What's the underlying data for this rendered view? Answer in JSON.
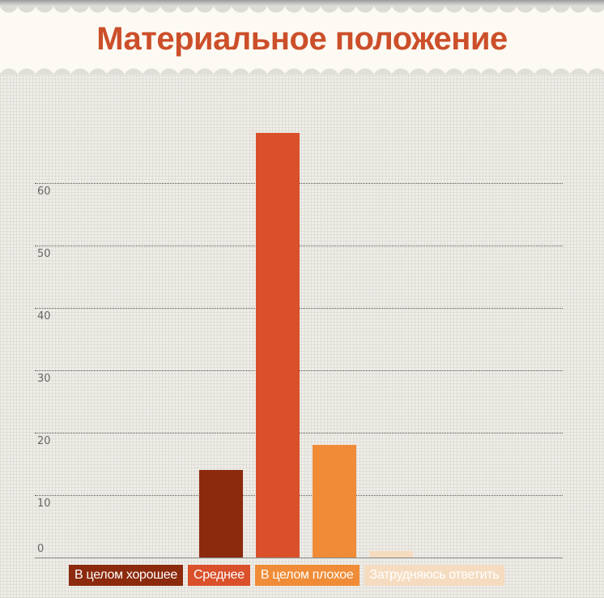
{
  "header": {
    "title": "Материальное положение",
    "title_color": "#cc4f2a"
  },
  "chart_data": {
    "type": "bar",
    "title": "Материальное положение",
    "xlabel": "",
    "ylabel": "",
    "categories": [
      "В целом хорошее",
      "Среднее",
      "В целом плохое",
      "Затрудняюсь ответить"
    ],
    "values": [
      14,
      68,
      18,
      1
    ],
    "colors": [
      "#8c2a0e",
      "#d9502a",
      "#f08c37",
      "#f5dcc0"
    ],
    "ylim": [
      0,
      70
    ],
    "yticks": [
      0,
      10,
      20,
      30,
      40,
      50,
      60
    ],
    "grid": true,
    "legend_position": "bottom"
  },
  "axis": {
    "ticks": [
      "0",
      "10",
      "20",
      "30",
      "40",
      "50",
      "60"
    ]
  },
  "legend": {
    "items": [
      {
        "label": "В целом хорошее",
        "color": "#8c2a0e"
      },
      {
        "label": "Среднее",
        "color": "#d9502a"
      },
      {
        "label": "В целом плохое",
        "color": "#f08c37"
      },
      {
        "label": "Затрудняюсь ответить",
        "color": "#f5dcc0"
      }
    ]
  }
}
